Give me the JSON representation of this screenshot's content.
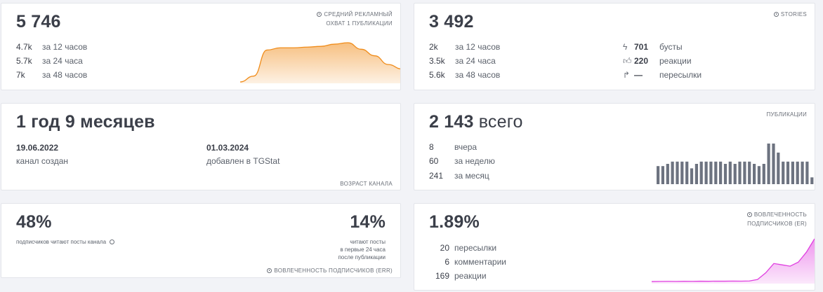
{
  "reach": {
    "value": "5 746",
    "corner": [
      "СРЕДНИЙ РЕКЛАМНЫЙ",
      "ОХВАТ 1 ПУБЛИКАЦИИ"
    ],
    "rows": [
      {
        "value": "4.7k",
        "label": "за 12 часов"
      },
      {
        "value": "5.7k",
        "label": "за 24 часа"
      },
      {
        "value": "7k",
        "label": "за 48 часов"
      }
    ],
    "sparkline": [
      0,
      8,
      44,
      47,
      47,
      48,
      49,
      52,
      54,
      45,
      36,
      24,
      18
    ],
    "accent": "#f08c1a"
  },
  "stories": {
    "value": "3 492",
    "corner": "STORIES",
    "rows": [
      {
        "value": "2k",
        "label": "за 12 часов"
      },
      {
        "value": "3.5k",
        "label": "за 24 часа"
      },
      {
        "value": "5.6k",
        "label": "за 48 часов"
      }
    ],
    "extra": [
      {
        "icon": "lightning-icon",
        "value": "701",
        "label": "бусты"
      },
      {
        "icon": "thumbs-up-icon",
        "value": "220",
        "label": "реакции"
      },
      {
        "icon": "share-arrow-icon",
        "value": "—",
        "label": "пересылки"
      }
    ]
  },
  "age": {
    "value": "1 год 9 месяцев",
    "created_date": "19.06.2022",
    "created_label": "канал создан",
    "added_date": "01.03.2024",
    "added_label": "добавлен в TGStat",
    "corner": "ВОЗРАСТ КАНАЛА"
  },
  "posts": {
    "value_num": "2 143",
    "value_word": "всего",
    "corner": "ПУБЛИКАЦИИ",
    "rows": [
      {
        "value": "8",
        "label": "вчера"
      },
      {
        "value": "60",
        "label": "за неделю"
      },
      {
        "value": "241",
        "label": "за месяц"
      }
    ],
    "bars": [
      8,
      8,
      9,
      10,
      10,
      10,
      10,
      7,
      9,
      10,
      10,
      10,
      10,
      10,
      9,
      10,
      9,
      10,
      10,
      10,
      9,
      8,
      9,
      18,
      18,
      14,
      10,
      10,
      10,
      10,
      10,
      10,
      3
    ],
    "bar_color": "#6d7380"
  },
  "err_read": {
    "value": "48%",
    "caption": "подписчиков читают посты канала",
    "right_value": "14%",
    "right_caption": [
      "читают посты",
      "в первые 24 часа",
      "после публикации"
    ],
    "corner": "ВОВЛЕЧЕННОСТЬ ПОДПИСЧИКОВ (ERR)"
  },
  "er": {
    "value": "1.89%",
    "corner": [
      "ВОВЛЕЧЕННОСТЬ",
      "ПОДПИСЧИКОВ (ER)"
    ],
    "rows": [
      {
        "value": "20",
        "label": "пересылки"
      },
      {
        "value": "6",
        "label": "комментарии"
      },
      {
        "value": "169",
        "label": "реакции"
      }
    ],
    "sparkline": [
      1,
      1.2,
      1.3,
      1.2,
      1.4,
      1.3,
      1.5,
      1.4,
      1.6,
      1.5,
      1.7,
      1.6,
      1.8,
      4,
      14,
      28,
      26,
      24,
      30,
      45,
      65
    ],
    "accent": "#e040e0"
  }
}
